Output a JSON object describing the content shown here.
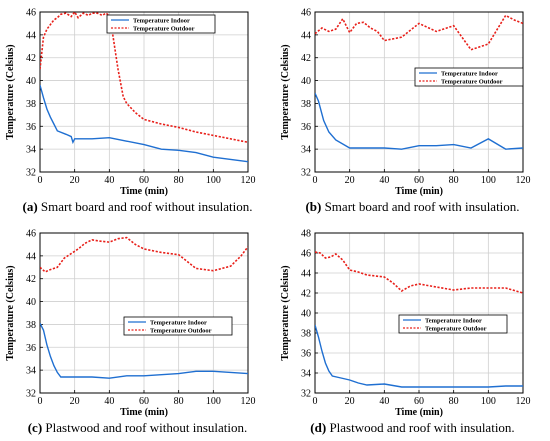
{
  "chart_data": [
    {
      "type": "line",
      "caption_tag": "(a)",
      "caption_text": " Smart board and roof without insulation.",
      "xlabel": "Time (min)",
      "ylabel": "Temperature (Celsius)",
      "xlim": [
        0,
        120
      ],
      "ylim": [
        32,
        46
      ],
      "xticks": [
        0,
        20,
        40,
        60,
        80,
        100,
        120
      ],
      "yticks": [
        32,
        34,
        36,
        38,
        40,
        42,
        44,
        46
      ],
      "grid": true,
      "legend_placement": "top-center",
      "series": [
        {
          "name": "Temperature Indoor",
          "color": "#1f6fd1",
          "dash": "solid",
          "x": [
            0,
            2,
            4,
            6,
            8,
            10,
            15,
            18,
            19,
            20,
            22,
            30,
            40,
            50,
            60,
            70,
            80,
            90,
            100,
            110,
            120
          ],
          "y": [
            39.6,
            38.5,
            37.5,
            36.8,
            36.2,
            35.6,
            35.3,
            35.1,
            34.6,
            34.9,
            34.9,
            34.9,
            35.0,
            34.7,
            34.4,
            34.0,
            33.9,
            33.7,
            33.3,
            33.1,
            32.9
          ]
        },
        {
          "name": "Temperature Outdoor",
          "color": "#e8201a",
          "dash": "dotted",
          "x": [
            0,
            2,
            4,
            6,
            8,
            10,
            12,
            15,
            18,
            20,
            22,
            25,
            28,
            30,
            33,
            36,
            38,
            40,
            42,
            45,
            48,
            50,
            55,
            60,
            70,
            80,
            90,
            100,
            110,
            120
          ],
          "y": [
            41.0,
            43.8,
            44.5,
            44.9,
            45.3,
            45.5,
            45.8,
            45.9,
            45.6,
            46.0,
            45.5,
            45.9,
            45.7,
            45.9,
            45.9,
            45.7,
            45.9,
            45.7,
            44.0,
            41.0,
            38.6,
            38.0,
            37.2,
            36.6,
            36.2,
            35.9,
            35.5,
            35.2,
            34.9,
            34.6
          ]
        }
      ]
    },
    {
      "type": "line",
      "caption_tag": "(b)",
      "caption_text": " Smart board and roof with insulation.",
      "xlabel": "Time (min)",
      "ylabel": "Temperature (Celsius)",
      "xlim": [
        0,
        120
      ],
      "ylim": [
        32,
        46
      ],
      "xticks": [
        0,
        20,
        40,
        60,
        80,
        100,
        120
      ],
      "yticks": [
        32,
        34,
        36,
        38,
        40,
        42,
        44,
        46
      ],
      "grid": true,
      "legend_placement": "center-right",
      "series": [
        {
          "name": "Temperature Indoor",
          "color": "#1f6fd1",
          "dash": "solid",
          "x": [
            0,
            2,
            5,
            8,
            12,
            20,
            30,
            40,
            50,
            60,
            70,
            80,
            90,
            100,
            110,
            120
          ],
          "y": [
            38.9,
            38.2,
            36.5,
            35.5,
            34.8,
            34.1,
            34.1,
            34.1,
            34.0,
            34.3,
            34.3,
            34.4,
            34.1,
            34.9,
            34.0,
            34.1
          ]
        },
        {
          "name": "Temperature Outdoor",
          "color": "#e8201a",
          "dash": "dotted",
          "x": [
            0,
            4,
            8,
            12,
            16,
            20,
            24,
            28,
            32,
            36,
            40,
            50,
            60,
            70,
            80,
            90,
            100,
            110,
            115,
            120
          ],
          "y": [
            44.1,
            44.6,
            44.3,
            44.5,
            45.4,
            44.2,
            45.0,
            45.1,
            44.6,
            44.3,
            43.5,
            43.8,
            45.0,
            44.3,
            44.8,
            42.7,
            43.2,
            45.7,
            45.3,
            45.0
          ]
        }
      ]
    },
    {
      "type": "line",
      "caption_tag": "(c)",
      "caption_text": " Plastwood and roof without insulation.",
      "xlabel": "Time (min)",
      "ylabel": "Temperature (Celsius)",
      "xlim": [
        0,
        120
      ],
      "ylim": [
        32,
        46
      ],
      "xticks": [
        0,
        20,
        40,
        60,
        80,
        100,
        120
      ],
      "yticks": [
        32,
        34,
        36,
        38,
        40,
        42,
        44,
        46
      ],
      "grid": true,
      "legend_placement": "center-right",
      "series": [
        {
          "name": "Temperature Indoor",
          "color": "#1f6fd1",
          "dash": "solid",
          "x": [
            0,
            2,
            4,
            6,
            8,
            10,
            12,
            15,
            20,
            30,
            40,
            50,
            60,
            70,
            80,
            90,
            100,
            110,
            120
          ],
          "y": [
            38.1,
            37.5,
            36.2,
            35.2,
            34.4,
            33.8,
            33.4,
            33.4,
            33.4,
            33.4,
            33.3,
            33.5,
            33.5,
            33.6,
            33.7,
            33.9,
            33.9,
            33.8,
            33.7
          ]
        },
        {
          "name": "Temperature Outdoor",
          "color": "#e8201a",
          "dash": "dotted",
          "x": [
            0,
            3,
            6,
            10,
            14,
            18,
            22,
            26,
            30,
            34,
            40,
            45,
            50,
            55,
            60,
            70,
            80,
            90,
            100,
            110,
            116,
            120
          ],
          "y": [
            43.0,
            42.6,
            42.8,
            43.0,
            43.8,
            44.2,
            44.6,
            45.1,
            45.4,
            45.3,
            45.2,
            45.5,
            45.6,
            45.0,
            44.6,
            44.3,
            44.1,
            42.9,
            42.7,
            43.1,
            44.0,
            44.8
          ]
        }
      ]
    },
    {
      "type": "line",
      "caption_tag": "(d)",
      "caption_text": " Plastwood and roof with insulation.",
      "xlabel": "Time (min)",
      "ylabel": "Temperature (Celsius)",
      "xlim": [
        0,
        120
      ],
      "ylim": [
        32,
        48
      ],
      "xticks": [
        0,
        20,
        40,
        60,
        80,
        100,
        120
      ],
      "yticks": [
        32,
        34,
        36,
        38,
        40,
        42,
        44,
        46,
        48
      ],
      "grid": true,
      "legend_placement": "center-right",
      "series": [
        {
          "name": "Temperature Indoor",
          "color": "#1f6fd1",
          "dash": "solid",
          "x": [
            0,
            2,
            4,
            6,
            8,
            10,
            15,
            20,
            25,
            30,
            40,
            50,
            60,
            70,
            80,
            90,
            100,
            110,
            120
          ],
          "y": [
            38.8,
            37.6,
            36.2,
            35.0,
            34.2,
            33.7,
            33.5,
            33.3,
            33.0,
            32.8,
            32.9,
            32.6,
            32.6,
            32.6,
            32.6,
            32.6,
            32.6,
            32.7,
            32.7
          ]
        },
        {
          "name": "Temperature Outdoor",
          "color": "#e8201a",
          "dash": "dotted",
          "x": [
            0,
            3,
            6,
            9,
            12,
            16,
            20,
            25,
            30,
            35,
            40,
            45,
            50,
            55,
            60,
            70,
            80,
            90,
            100,
            110,
            120
          ],
          "y": [
            46.1,
            46.0,
            45.5,
            45.6,
            45.9,
            45.3,
            44.3,
            44.1,
            43.8,
            43.7,
            43.6,
            43.0,
            42.2,
            42.7,
            42.9,
            42.6,
            42.3,
            42.5,
            42.5,
            42.5,
            42.0
          ]
        }
      ]
    }
  ]
}
